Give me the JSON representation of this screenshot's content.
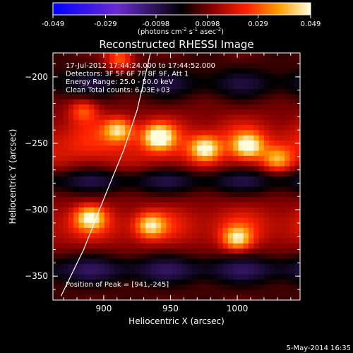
{
  "chart_data": {
    "type": "heatmap",
    "title": "Reconstructed RHESSI Image",
    "xlabel": "Heliocentric X (arcsec)",
    "ylabel": "Heliocentric Y (arcsec)",
    "xlim": [
      862,
      1047
    ],
    "ylim": [
      -368,
      -182
    ],
    "xticks": [
      "900",
      "950",
      "1000"
    ],
    "xtick_values": [
      900,
      950,
      1000
    ],
    "yticks": [
      "-200",
      "-250",
      "-300",
      "-350"
    ],
    "ytick_values": [
      -200,
      -250,
      -300,
      -350
    ],
    "colorbar": {
      "range": [
        -0.049,
        0.049
      ],
      "ticks": [
        "-0.049",
        "-0.029",
        "-0.0098",
        "0.0098",
        "0.029",
        "0.049"
      ],
      "tick_values": [
        -0.049,
        -0.029,
        -0.0098,
        0.0098,
        0.029,
        0.049
      ],
      "unit_main": "(photons cm",
      "unit_sup1": "-2",
      "unit_mid": " s",
      "unit_sup2": "-1",
      "unit_end": " asec",
      "unit_sup3": "-2",
      "unit_close": ")"
    },
    "annotations": [
      "17-Jul-2012 17:44:24.000 to 17:44:52.000",
      "Detectors: 3F 5F 6F 7F 8F 9F, Att 1",
      "Energy Range: 25.0 - 50.0 keV",
      "Clean     Total counts: 6.03E+03"
    ],
    "peak_label": "Position of Peak = [941,-245]",
    "peak": [
      941,
      -245
    ],
    "sources": [
      {
        "x": 941,
        "y": -245,
        "value": 0.049
      },
      {
        "x": 976,
        "y": -254,
        "value": 0.044
      },
      {
        "x": 1008,
        "y": -252,
        "value": 0.042
      },
      {
        "x": 911,
        "y": -240,
        "value": 0.04
      },
      {
        "x": 890,
        "y": -306,
        "value": 0.04
      },
      {
        "x": 1000,
        "y": -322,
        "value": 0.04
      },
      {
        "x": 935,
        "y": -312,
        "value": 0.036
      },
      {
        "x": 912,
        "y": -186,
        "value": 0.033
      },
      {
        "x": 1030,
        "y": -262,
        "value": 0.03
      },
      {
        "x": 885,
        "y": -225,
        "value": 0.025
      }
    ],
    "limb_line": [
      [
        868,
        -365
      ],
      [
        885,
        -330
      ],
      [
        900,
        -292
      ],
      [
        915,
        -255
      ],
      [
        925,
        -225
      ],
      [
        935,
        -182
      ]
    ]
  },
  "footer": {
    "date": "5-May-2014 16:35"
  }
}
